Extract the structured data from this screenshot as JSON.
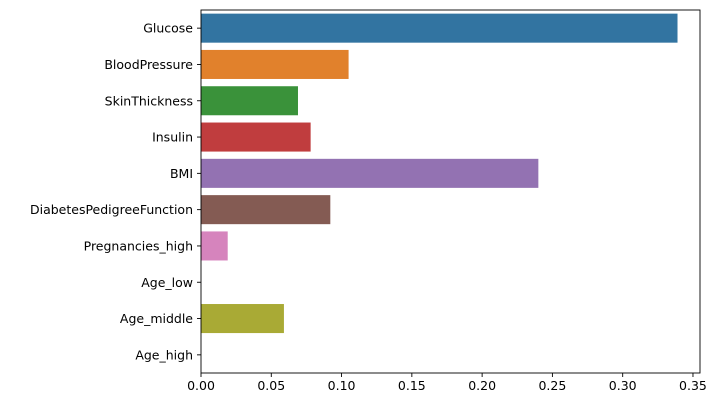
{
  "chart_data": {
    "type": "bar",
    "orientation": "horizontal",
    "title": "",
    "xlabel": "",
    "ylabel": "",
    "categories": [
      "Glucose",
      "BloodPressure",
      "SkinThickness",
      "Insulin",
      "BMI",
      "DiabetesPedigreeFunction",
      "Pregnancies_high",
      "Age_low",
      "Age_middle",
      "Age_high"
    ],
    "values": [
      0.339,
      0.105,
      0.069,
      0.078,
      0.24,
      0.092,
      0.019,
      0.0,
      0.059,
      0.0
    ],
    "colors": [
      "#3274a1",
      "#e1812c",
      "#3a923a",
      "#c03d3e",
      "#9372b2",
      "#845b53",
      "#d684bd",
      "#7f7f7f",
      "#a9aa35",
      "#2ebece"
    ],
    "xlim": [
      0,
      0.355
    ],
    "xticks": [
      0.0,
      0.05,
      0.1,
      0.15,
      0.2,
      0.25,
      0.3,
      0.35
    ],
    "xtick_labels": [
      "0.00",
      "0.05",
      "0.10",
      "0.15",
      "0.20",
      "0.25",
      "0.30",
      "0.35"
    ],
    "grid": false,
    "legend": "none"
  }
}
